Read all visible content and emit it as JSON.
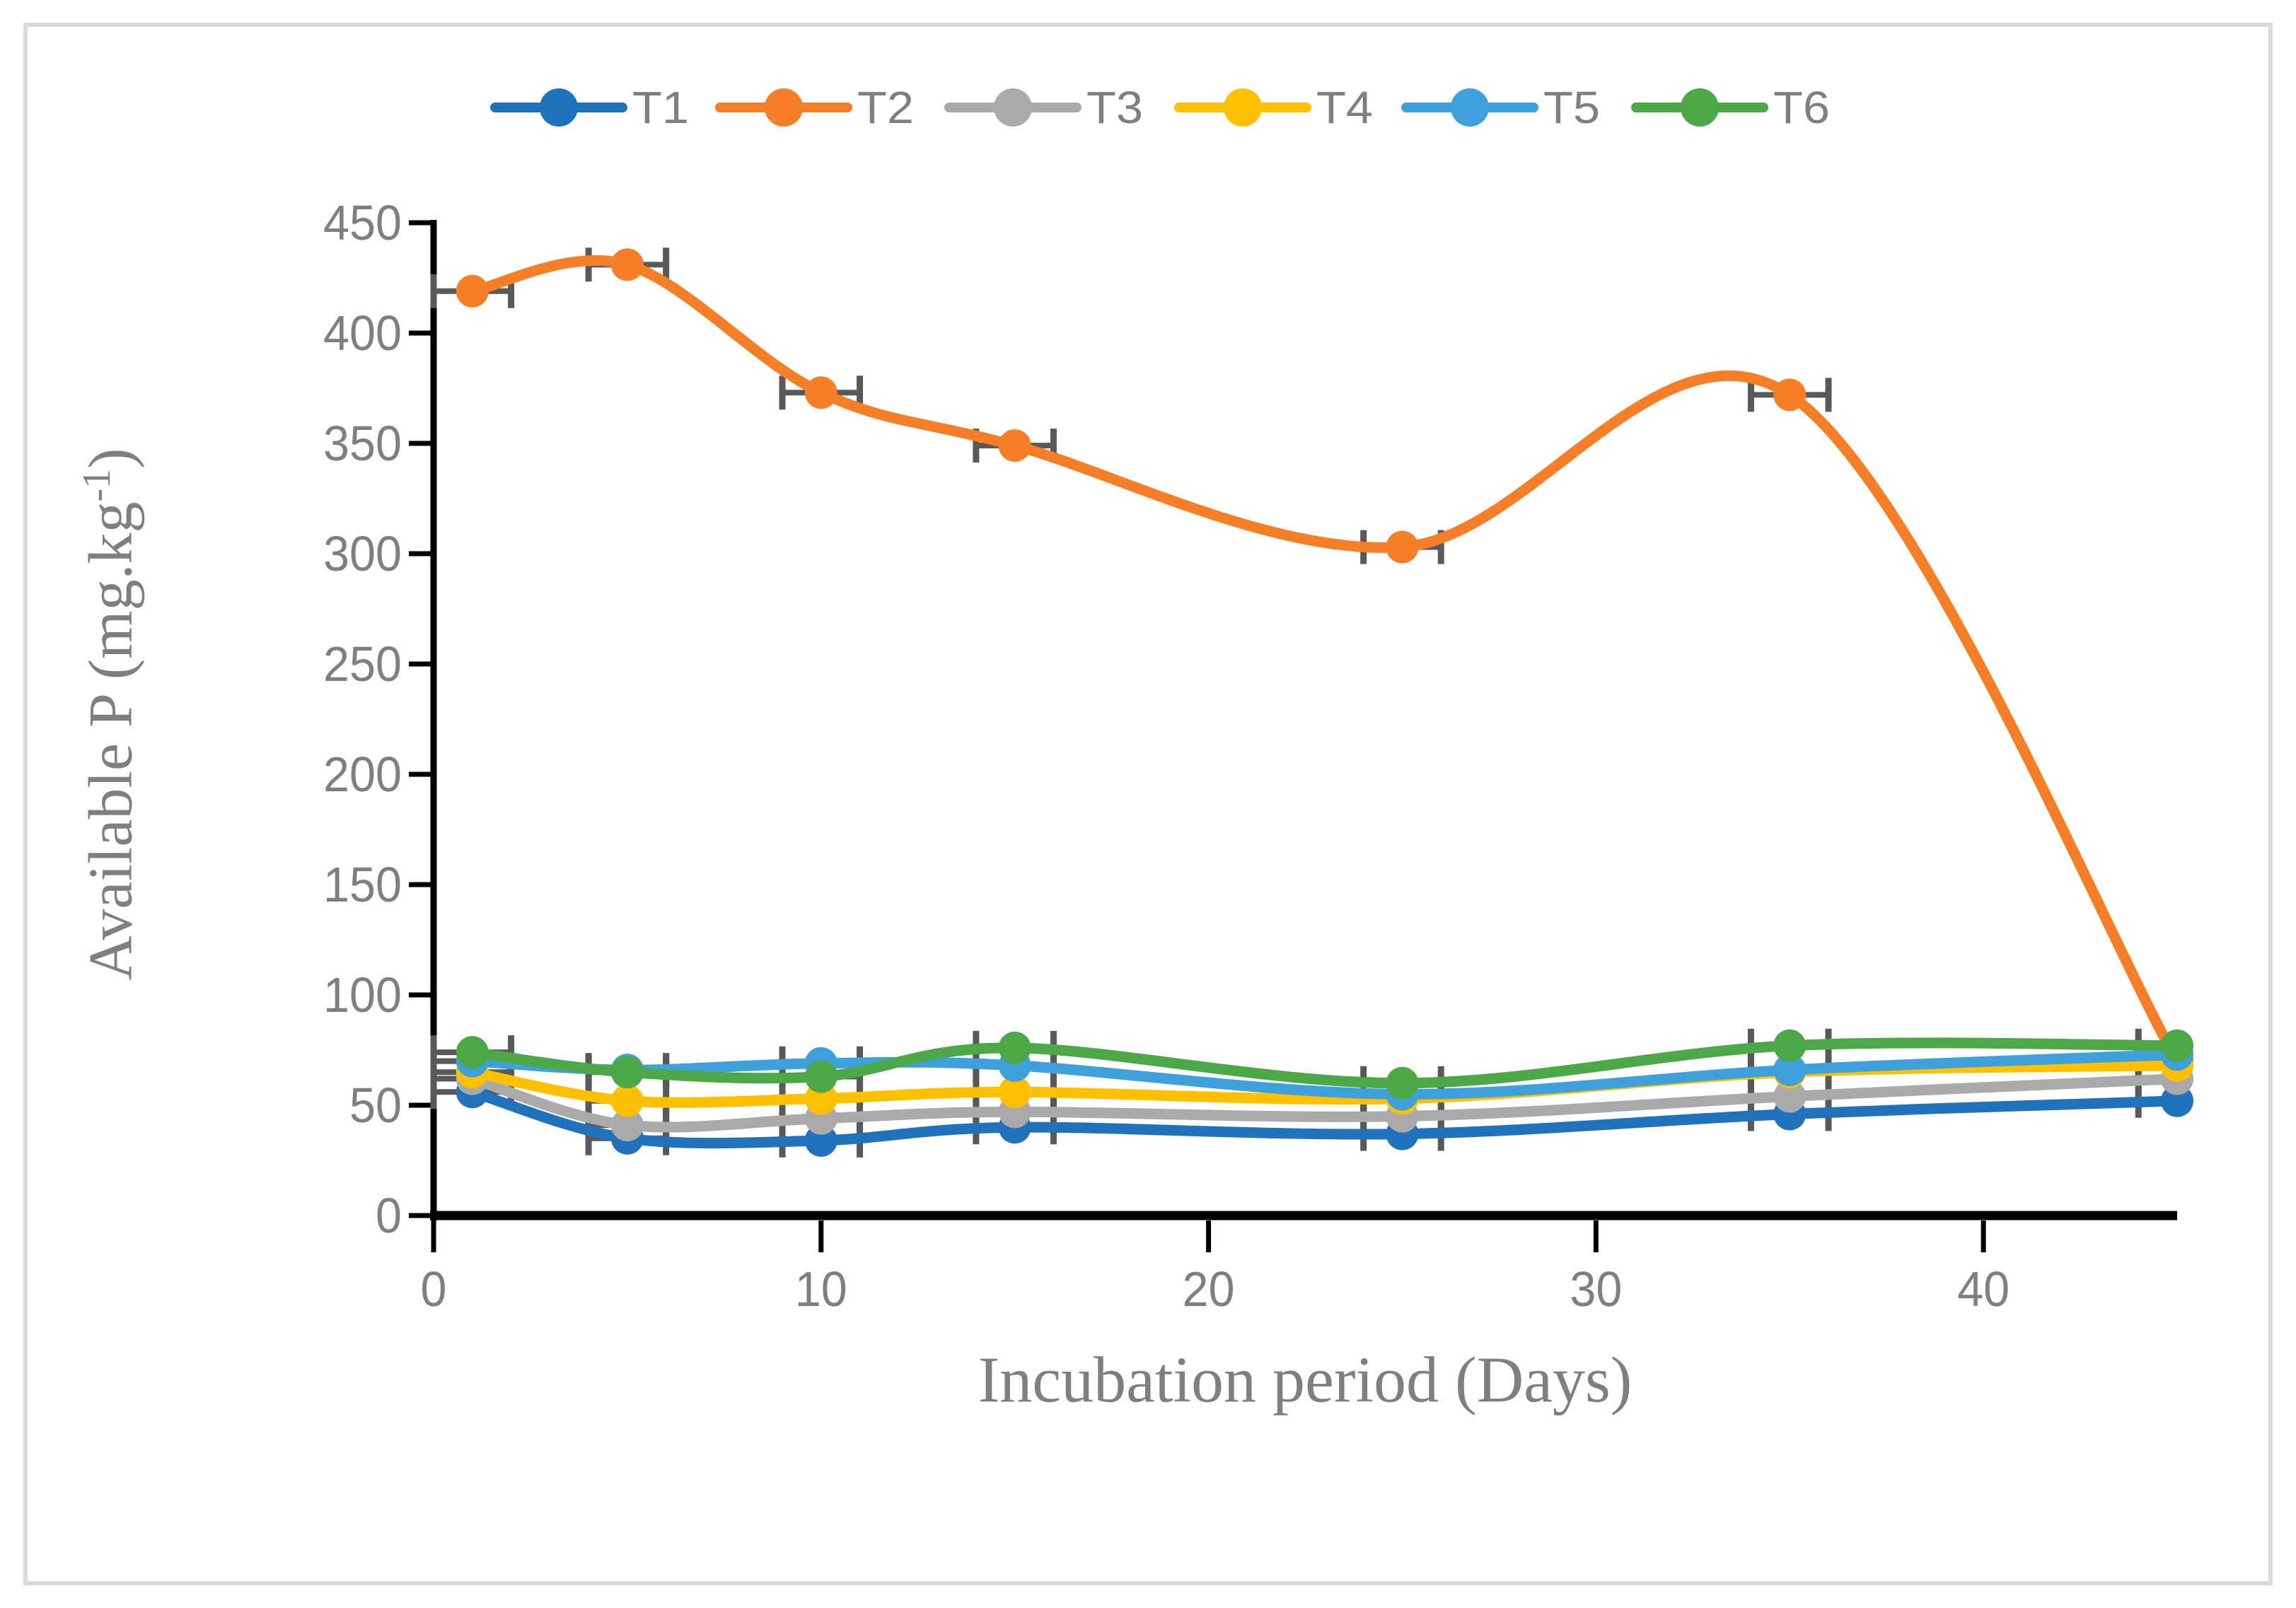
{
  "figure": {
    "description": "Line chart of available phosphorus over incubation time for six treatments"
  },
  "chart_data": {
    "type": "line",
    "smooth": true,
    "x": [
      1,
      5,
      10,
      15,
      25,
      35,
      45
    ],
    "series": [
      {
        "name": "T1",
        "color": "#2072BC",
        "values": [
          56,
          35,
          34,
          40,
          37,
          46,
          52
        ]
      },
      {
        "name": "T2",
        "color": "#F57E26",
        "values": [
          419,
          431,
          373,
          349,
          303,
          372,
          70
        ]
      },
      {
        "name": "T3",
        "color": "#AAAAAA",
        "values": [
          62,
          41,
          44,
          47,
          45,
          54,
          62
        ]
      },
      {
        "name": "T4",
        "color": "#FFC000",
        "values": [
          65,
          52,
          53,
          56,
          53,
          65,
          68
        ]
      },
      {
        "name": "T5",
        "color": "#3EA1DB",
        "values": [
          70,
          66,
          69,
          68,
          55,
          66,
          73
        ]
      },
      {
        "name": "T6",
        "color": "#4CA846",
        "values": [
          74,
          65,
          63,
          76,
          60,
          77,
          77
        ]
      }
    ],
    "title": "",
    "xlabel": "Incubation period (Days)",
    "ylabel": "Available P (mg.kg-1)",
    "ylabel_prefix": "Available P (mg.kg",
    "ylabel_sup": "-1",
    "ylabel_suffix": ")",
    "x_ticks": [
      0,
      10,
      20,
      30,
      40
    ],
    "y_ticks": [
      0,
      50,
      100,
      150,
      200,
      250,
      300,
      350,
      400,
      450
    ],
    "xlim": [
      0,
      45
    ],
    "ylim": [
      0,
      450
    ],
    "grid": false,
    "legend_position": "top",
    "legend": [
      "T1",
      "T2",
      "T3",
      "T4",
      "T5",
      "T6"
    ],
    "error_bars": {
      "direction": "horizontal",
      "plus_minus_x": 1,
      "color": "#595959"
    },
    "colors": {
      "axis": "#000000",
      "tick_text": "#7F7F7F",
      "legend_text": "#7F7F7F",
      "title_text": "#7F7F7F",
      "figure_border": "#D9D9D9",
      "background": "#FFFFFF"
    }
  }
}
